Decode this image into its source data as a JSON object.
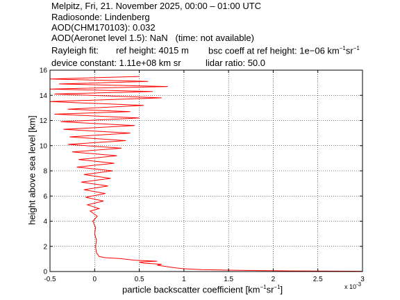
{
  "header": {
    "line1": "Melpitz, Fri, 21. November 2025, 00:00 – 01:00 UTC",
    "line2": "Radiosonde: Lindenberg",
    "line3": "AOD(CHM170103): 0.032",
    "line4": "AOD(Aeronet level 1.5): NaN   (time: not available)",
    "rayleigh_fit": "Rayleigh fit:",
    "ref_height": "ref height: 4015 m",
    "bsc_coeff_prefix": "bsc coeff at ref height: 1e−06 km",
    "device_constant": "device constant: 1.11e+08 km sr",
    "lidar_ratio": "lidar ratio: 50.0"
  },
  "chart_data": {
    "type": "line",
    "xlabel_prefix": "particle backscatter coefficient [km",
    "ylabel": "height above sea level [km]",
    "x_exponent": "x 10",
    "x_exponent_power": "-3",
    "xlim": [
      -0.5,
      3
    ],
    "ylim": [
      0,
      16
    ],
    "grid": true,
    "x_ticks": [
      "-0.5",
      "0",
      "0.5",
      "1",
      "1.5",
      "2",
      "2.5",
      "3"
    ],
    "y_ticks": [
      "0",
      "2",
      "4",
      "6",
      "8",
      "10",
      "12",
      "14",
      "16"
    ],
    "series": [
      {
        "color": "#ff0000",
        "points": [
          [
            3.0,
            0.02
          ],
          [
            2.2,
            0.05
          ],
          [
            1.85,
            0.08
          ],
          [
            1.5,
            0.11
          ],
          [
            1.2,
            0.15
          ],
          [
            1.0,
            0.22
          ],
          [
            0.9,
            0.3
          ],
          [
            0.8,
            0.4
          ],
          [
            0.7,
            0.5
          ],
          [
            0.75,
            0.58
          ],
          [
            0.55,
            0.66
          ],
          [
            0.5,
            0.75
          ],
          [
            0.7,
            0.82
          ],
          [
            0.45,
            0.9
          ],
          [
            0.35,
            0.98
          ],
          [
            0.25,
            1.05
          ],
          [
            0.12,
            1.1
          ],
          [
            0.05,
            1.2
          ],
          [
            0.02,
            1.5
          ],
          [
            0.01,
            2.0
          ],
          [
            0.02,
            2.5
          ],
          [
            0.0,
            3.0
          ],
          [
            0.01,
            3.5
          ],
          [
            -0.02,
            4.0
          ],
          [
            0.03,
            4.4
          ],
          [
            -0.05,
            4.8
          ],
          [
            0.05,
            5.0
          ],
          [
            -0.08,
            5.3
          ],
          [
            0.1,
            5.6
          ],
          [
            -0.1,
            5.9
          ],
          [
            0.12,
            6.2
          ],
          [
            -0.12,
            6.5
          ],
          [
            0.15,
            6.8
          ],
          [
            -0.15,
            7.1
          ],
          [
            0.18,
            7.4
          ],
          [
            -0.12,
            7.7
          ],
          [
            0.2,
            8.0
          ],
          [
            -0.2,
            8.3
          ],
          [
            0.22,
            8.6
          ],
          [
            -0.18,
            8.9
          ],
          [
            0.25,
            9.2
          ],
          [
            -0.25,
            9.5
          ],
          [
            0.3,
            9.8
          ],
          [
            -0.3,
            10.1
          ],
          [
            0.35,
            10.4
          ],
          [
            -0.28,
            10.7
          ],
          [
            0.4,
            11.0
          ],
          [
            -0.35,
            11.3
          ],
          [
            0.45,
            11.6
          ],
          [
            -0.38,
            11.9
          ],
          [
            0.5,
            12.2
          ],
          [
            -0.45,
            12.5
          ],
          [
            0.4,
            12.7
          ],
          [
            -0.3,
            12.9
          ],
          [
            0.55,
            13.2
          ],
          [
            -0.5,
            13.5
          ],
          [
            0.75,
            13.8
          ],
          [
            -0.45,
            14.1
          ],
          [
            0.65,
            14.3
          ],
          [
            -0.5,
            14.5
          ],
          [
            0.82,
            14.7
          ],
          [
            -0.4,
            14.9
          ],
          [
            0.6,
            15.1
          ],
          [
            -0.5,
            15.3
          ],
          [
            0.5,
            15.5
          ]
        ]
      }
    ]
  }
}
